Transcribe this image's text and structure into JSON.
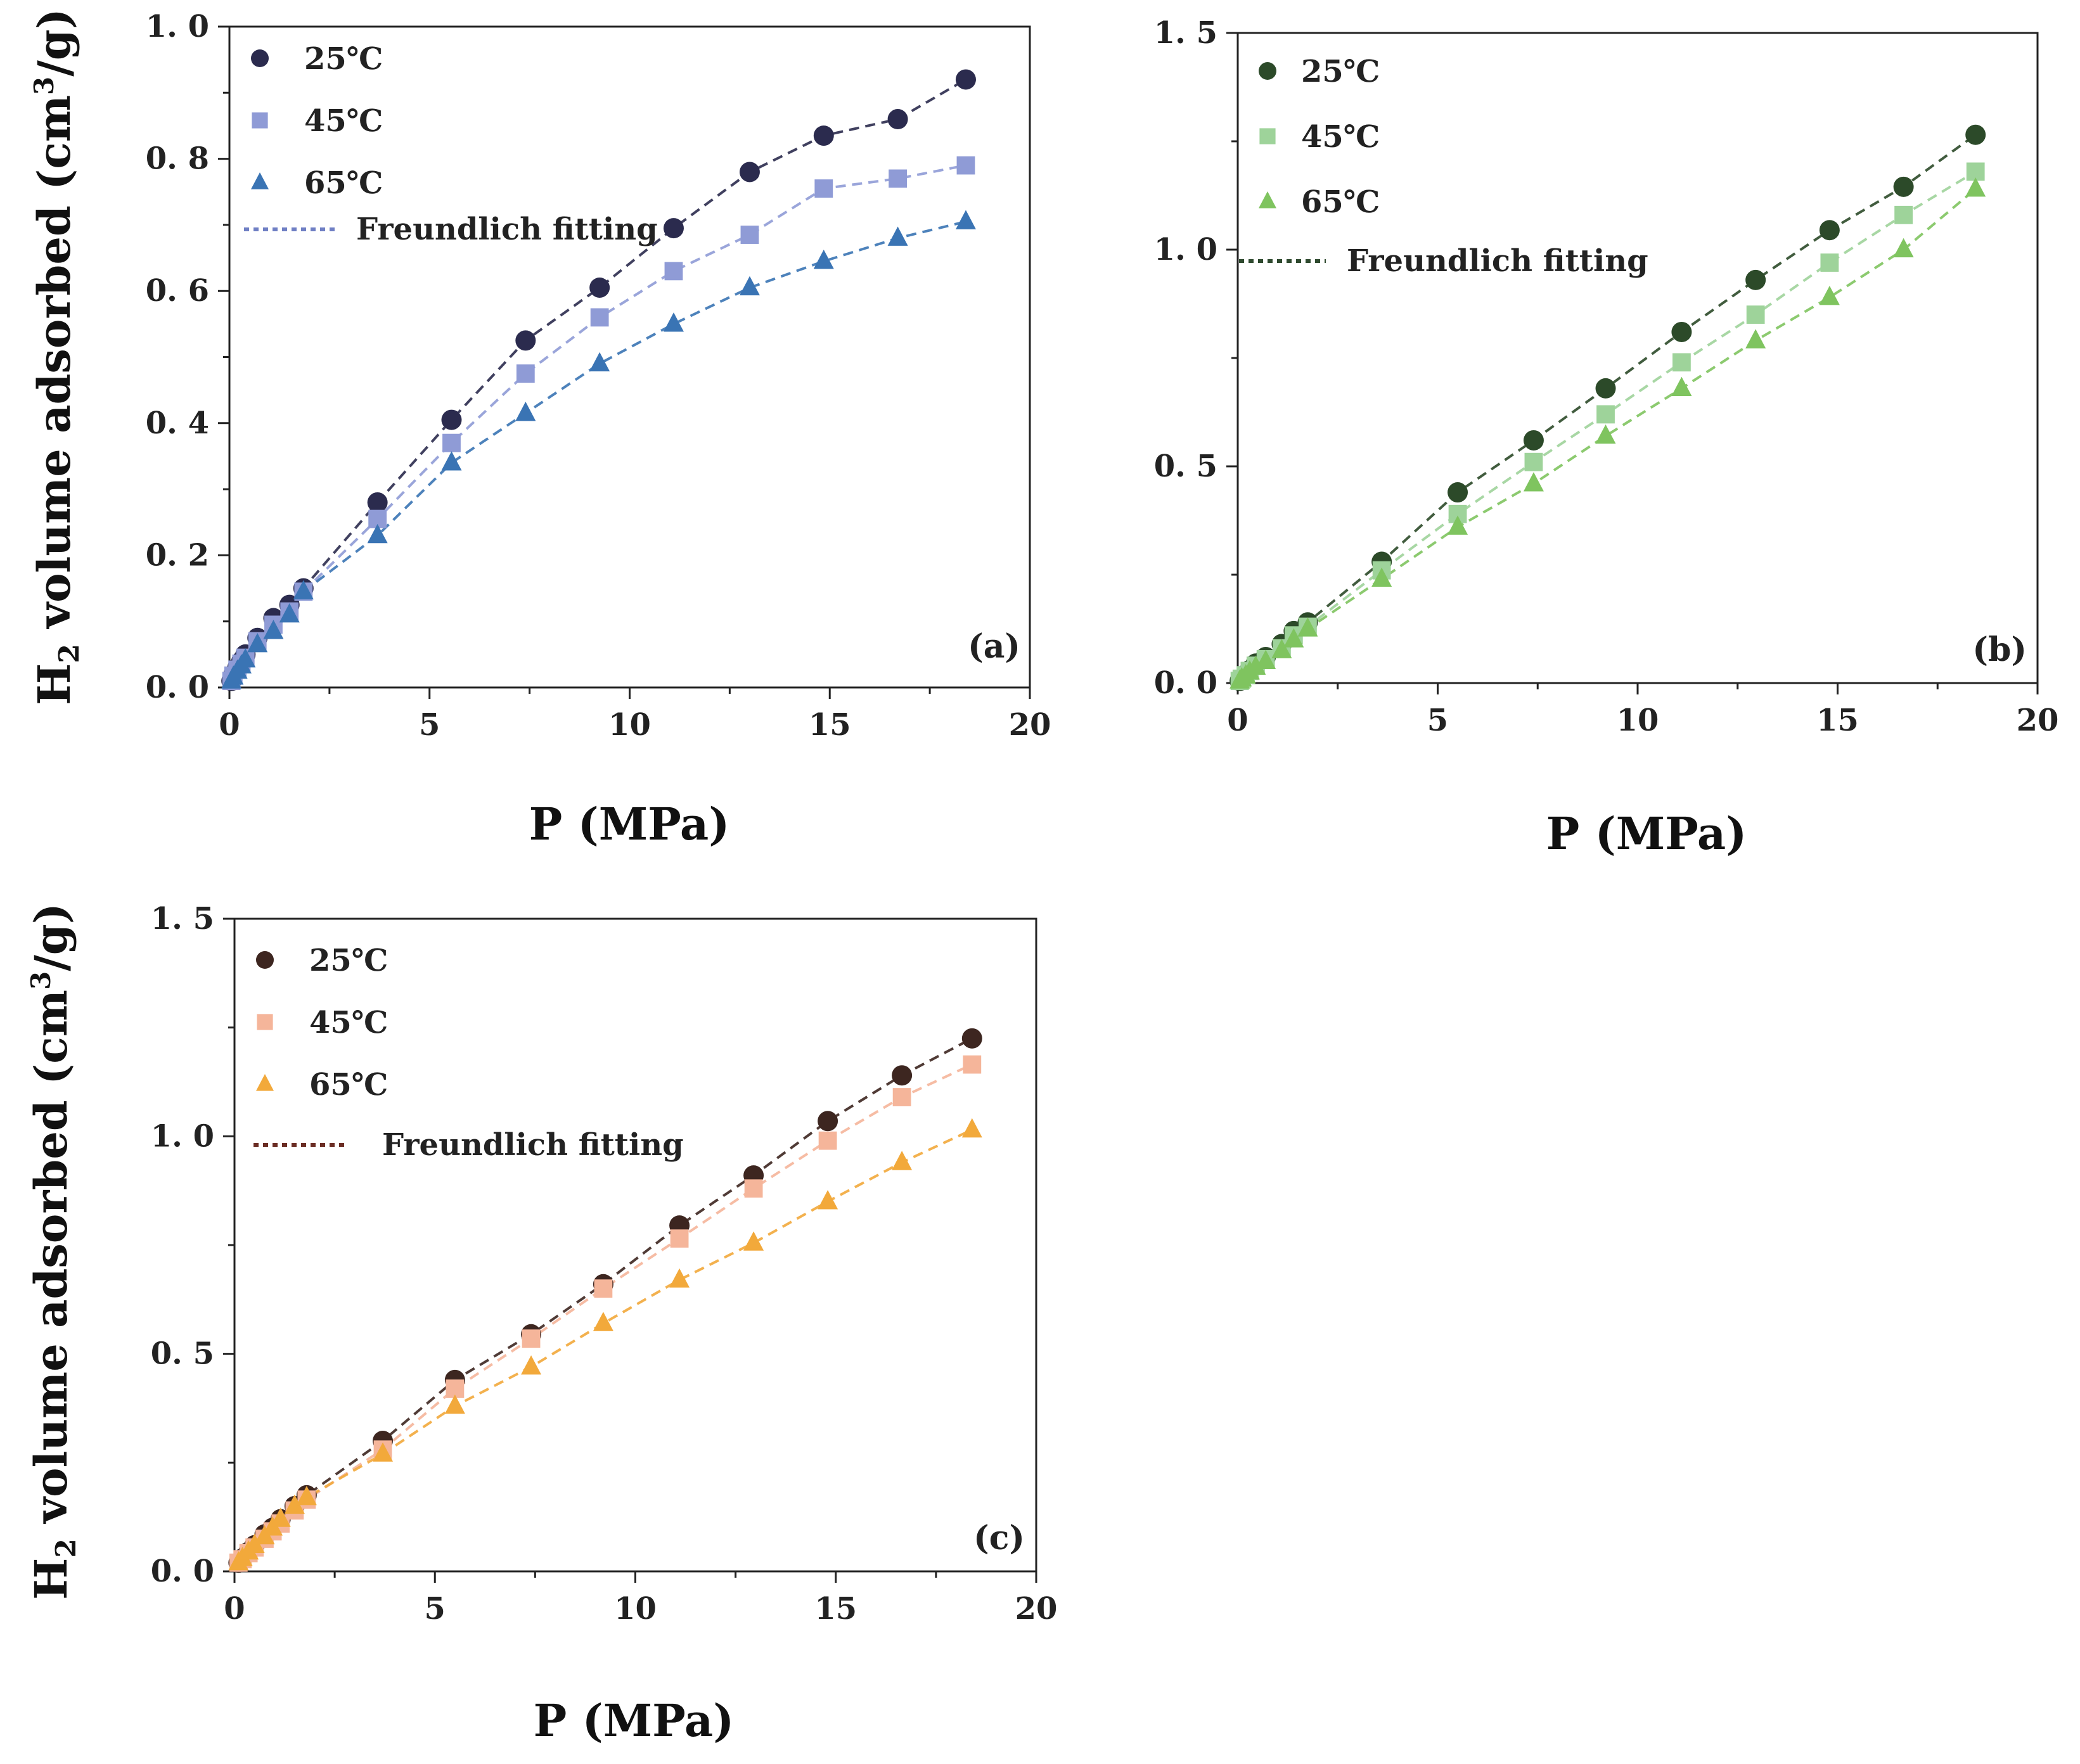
{
  "chart_data": [
    {
      "id": "a",
      "type": "scatter",
      "panel_label": "(a)",
      "xlabel": "P (MPa)",
      "ylabel": "H2 volume adsorbed (cm3/g)",
      "xlim": [
        0,
        20
      ],
      "ylim": [
        0,
        1.0
      ],
      "x_ticks": [
        0,
        5,
        10,
        15,
        20
      ],
      "x_tick_labels": [
        "0",
        "5",
        "10",
        "15",
        "20"
      ],
      "y_ticks": [
        0,
        0.2,
        0.4,
        0.6,
        0.8,
        1.0
      ],
      "y_tick_labels": [
        "0. 0",
        "0. 2",
        "0. 4",
        "0. 6",
        "0. 8",
        "1. 0"
      ],
      "fit_label": "Freundlich fitting",
      "fit_color": "#6f7fc4",
      "x": [
        0.05,
        0.1,
        0.2,
        0.3,
        0.4,
        0.7,
        1.1,
        1.5,
        1.85,
        3.7,
        5.55,
        7.4,
        9.25,
        11.1,
        13.0,
        14.85,
        16.7,
        18.4
      ],
      "series": [
        {
          "name": "25℃",
          "marker": "circle",
          "color": "#2b2b4e",
          "values": [
            0.01,
            0.02,
            0.03,
            0.04,
            0.05,
            0.075,
            0.105,
            0.125,
            0.15,
            0.28,
            0.405,
            0.525,
            0.605,
            0.695,
            0.78,
            0.835,
            0.86,
            0.92
          ]
        },
        {
          "name": "45℃",
          "marker": "square",
          "color": "#8f9bd6",
          "values": [
            0.01,
            0.018,
            0.027,
            0.036,
            0.045,
            0.07,
            0.095,
            0.115,
            0.145,
            0.255,
            0.37,
            0.475,
            0.56,
            0.63,
            0.685,
            0.755,
            0.77,
            0.79
          ]
        },
        {
          "name": "65℃",
          "marker": "triangle",
          "color": "#3a74b4",
          "values": [
            0.01,
            0.016,
            0.025,
            0.033,
            0.042,
            0.065,
            0.085,
            0.11,
            0.145,
            0.23,
            0.34,
            0.415,
            0.49,
            0.55,
            0.605,
            0.645,
            0.68,
            0.705
          ]
        }
      ]
    },
    {
      "id": "b",
      "type": "scatter",
      "panel_label": "(b)",
      "xlabel": "P (MPa)",
      "ylabel": "",
      "xlim": [
        0,
        20
      ],
      "ylim": [
        0,
        1.5
      ],
      "x_ticks": [
        0,
        5,
        10,
        15,
        20
      ],
      "x_tick_labels": [
        "0",
        "5",
        "10",
        "15",
        "20"
      ],
      "y_ticks": [
        0,
        0.5,
        1.0,
        1.5
      ],
      "y_tick_labels": [
        "0. 0",
        "0. 5",
        "1. 0",
        "1. 5"
      ],
      "fit_label": "Freundlich fitting",
      "fit_color": "#2f4a2f",
      "x": [
        0.05,
        0.1,
        0.2,
        0.3,
        0.45,
        0.7,
        1.1,
        1.4,
        1.75,
        3.6,
        5.5,
        7.4,
        9.2,
        11.1,
        12.95,
        14.8,
        16.65,
        18.45
      ],
      "series": [
        {
          "name": "25℃",
          "marker": "circle",
          "color": "#2c4a29",
          "values": [
            0.005,
            0.01,
            0.02,
            0.03,
            0.045,
            0.06,
            0.09,
            0.12,
            0.14,
            0.28,
            0.44,
            0.56,
            0.68,
            0.81,
            0.93,
            1.045,
            1.145,
            1.265
          ]
        },
        {
          "name": "45℃",
          "marker": "square",
          "color": "#9ed39a",
          "values": [
            0.005,
            0.01,
            0.018,
            0.028,
            0.04,
            0.055,
            0.08,
            0.11,
            0.13,
            0.26,
            0.39,
            0.51,
            0.62,
            0.74,
            0.85,
            0.97,
            1.08,
            1.18
          ]
        },
        {
          "name": "65℃",
          "marker": "triangle",
          "color": "#7fc45f",
          "values": [
            0.005,
            0.01,
            0.017,
            0.026,
            0.037,
            0.05,
            0.075,
            0.1,
            0.125,
            0.24,
            0.36,
            0.46,
            0.57,
            0.68,
            0.79,
            0.89,
            1.0,
            1.14
          ]
        }
      ]
    },
    {
      "id": "c",
      "type": "scatter",
      "panel_label": "(c)",
      "xlabel": "P (MPa)",
      "ylabel": "H2 volume adsorbed (cm3/g)",
      "xlim": [
        0,
        20
      ],
      "ylim": [
        0,
        1.5
      ],
      "x_ticks": [
        0,
        5,
        10,
        15,
        20
      ],
      "x_tick_labels": [
        "0",
        "5",
        "10",
        "15",
        "20"
      ],
      "y_ticks": [
        0,
        0.5,
        1.0,
        1.5
      ],
      "y_tick_labels": [
        "0. 0",
        "0. 5",
        "1. 0",
        "1. 5"
      ],
      "fit_label": "Freundlich fitting",
      "fit_color": "#6b2d24",
      "x": [
        0.1,
        0.2,
        0.35,
        0.5,
        0.75,
        0.95,
        1.15,
        1.5,
        1.8,
        3.7,
        5.5,
        7.4,
        9.2,
        11.1,
        12.95,
        14.8,
        16.65,
        18.4
      ],
      "series": [
        {
          "name": "25℃",
          "marker": "circle",
          "color": "#3d2620",
          "values": [
            0.02,
            0.03,
            0.045,
            0.06,
            0.085,
            0.1,
            0.12,
            0.15,
            0.175,
            0.3,
            0.44,
            0.545,
            0.66,
            0.795,
            0.91,
            1.035,
            1.14,
            1.225
          ]
        },
        {
          "name": "45℃",
          "marker": "square",
          "color": "#f5b59a",
          "values": [
            0.02,
            0.028,
            0.042,
            0.055,
            0.075,
            0.092,
            0.11,
            0.14,
            0.165,
            0.28,
            0.42,
            0.535,
            0.65,
            0.765,
            0.88,
            0.99,
            1.09,
            1.165
          ]
        },
        {
          "name": "65℃",
          "marker": "triangle",
          "color": "#f2a93b",
          "values": [
            0.02,
            0.03,
            0.045,
            0.06,
            0.08,
            0.1,
            0.12,
            0.15,
            0.17,
            0.27,
            0.38,
            0.47,
            0.57,
            0.67,
            0.755,
            0.85,
            0.94,
            1.015
          ]
        }
      ]
    }
  ]
}
